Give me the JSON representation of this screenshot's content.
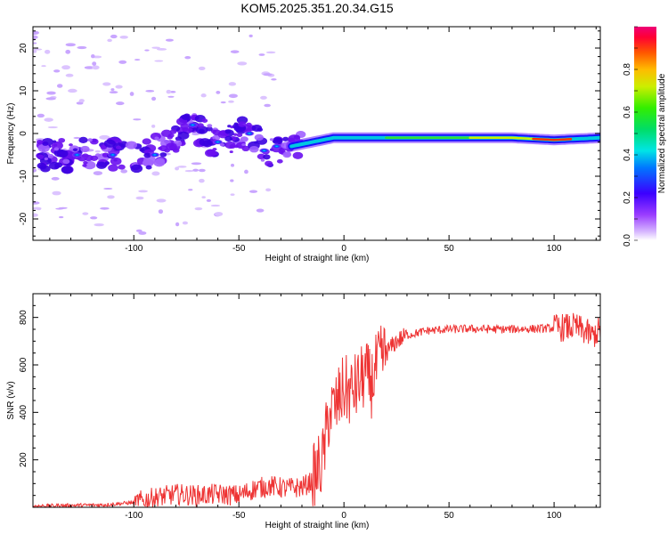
{
  "title": "KOM5.2025.351.20.34.G15",
  "chart_data": [
    {
      "type": "heatmap",
      "xlabel": "Height of straight line (km)",
      "ylabel": "Frequency (Hz)",
      "xlim": [
        -148,
        122
      ],
      "ylim": [
        -25,
        25
      ],
      "xticks": [
        "-100",
        "-50",
        "0",
        "50",
        "100"
      ],
      "yticks": [
        "-20",
        "-10",
        "0",
        "10",
        "20"
      ],
      "ridge_frequency": [
        {
          "x": -145,
          "y": -5
        },
        {
          "x": -130,
          "y": -5
        },
        {
          "x": -110,
          "y": -5
        },
        {
          "x": -95,
          "y": -5
        },
        {
          "x": -85,
          "y": -3
        },
        {
          "x": -72,
          "y": 2
        },
        {
          "x": -62,
          "y": -2
        },
        {
          "x": -48,
          "y": 0
        },
        {
          "x": -35,
          "y": -4
        },
        {
          "x": -25,
          "y": -3
        },
        {
          "x": -15,
          "y": -2
        },
        {
          "x": -5,
          "y": -1
        },
        {
          "x": 5,
          "y": -1
        },
        {
          "x": 20,
          "y": -1
        },
        {
          "x": 50,
          "y": -1
        },
        {
          "x": 80,
          "y": -1
        },
        {
          "x": 100,
          "y": -1.5
        },
        {
          "x": 122,
          "y": -1
        }
      ],
      "colorbar": {
        "label": "Normalized spectral amplitude",
        "range": [
          0,
          1
        ],
        "ticks": [
          "0.0",
          "0.2",
          "0.4",
          "0.6",
          "0.8"
        ]
      }
    },
    {
      "type": "line",
      "xlabel": "Height of straight line (km)",
      "ylabel": "SNR (v/v)",
      "xlim": [
        -148,
        122
      ],
      "ylim": [
        0,
        900
      ],
      "xticks": [
        "-100",
        "-50",
        "0",
        "50",
        "100"
      ],
      "yticks": [
        "200",
        "400",
        "600",
        "800"
      ],
      "series": [
        {
          "color": "#ee3333",
          "points": [
            {
              "x": -148,
              "y": 5
            },
            {
              "x": -130,
              "y": 8
            },
            {
              "x": -115,
              "y": 10
            },
            {
              "x": -100,
              "y": 20
            },
            {
              "x": -90,
              "y": 40
            },
            {
              "x": -80,
              "y": 55
            },
            {
              "x": -70,
              "y": 50
            },
            {
              "x": -60,
              "y": 55
            },
            {
              "x": -50,
              "y": 50
            },
            {
              "x": -42,
              "y": 80
            },
            {
              "x": -35,
              "y": 90
            },
            {
              "x": -28,
              "y": 80
            },
            {
              "x": -20,
              "y": 85
            },
            {
              "x": -15,
              "y": 110
            },
            {
              "x": -10,
              "y": 200
            },
            {
              "x": -7,
              "y": 400
            },
            {
              "x": -4,
              "y": 420
            },
            {
              "x": 0,
              "y": 500
            },
            {
              "x": 3,
              "y": 480
            },
            {
              "x": 7,
              "y": 520
            },
            {
              "x": 10,
              "y": 560
            },
            {
              "x": 13,
              "y": 520
            },
            {
              "x": 16,
              "y": 600
            },
            {
              "x": 20,
              "y": 650
            },
            {
              "x": 25,
              "y": 700
            },
            {
              "x": 30,
              "y": 725
            },
            {
              "x": 40,
              "y": 745
            },
            {
              "x": 50,
              "y": 750
            },
            {
              "x": 60,
              "y": 752
            },
            {
              "x": 75,
              "y": 750
            },
            {
              "x": 90,
              "y": 752
            },
            {
              "x": 100,
              "y": 755
            },
            {
              "x": 110,
              "y": 760
            },
            {
              "x": 115,
              "y": 740
            },
            {
              "x": 118,
              "y": 720
            },
            {
              "x": 122,
              "y": 750
            }
          ]
        }
      ]
    }
  ]
}
